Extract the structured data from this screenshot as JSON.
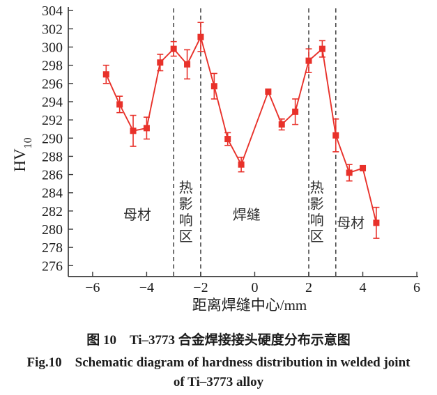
{
  "figure": {
    "captions": {
      "zh": "图 10　Ti–3773 合金焊接接头硬度分布示意图",
      "en_line1": "Fig.10　Schematic diagram of hardness distribution in welded joint",
      "en_line2": "of Ti–3773 alloy"
    }
  },
  "chart_data": {
    "type": "line",
    "title": "",
    "xlabel": "距离焊缝中心/mm",
    "ylabel_main": "HV",
    "ylabel_sub": "10",
    "xlim": [
      -6.9,
      6.05
    ],
    "ylim": [
      274.8,
      304.4
    ],
    "x_ticks": [
      -6,
      -4,
      -2,
      0,
      2,
      4,
      6
    ],
    "y_ticks": [
      276,
      278,
      280,
      282,
      284,
      286,
      288,
      290,
      292,
      294,
      296,
      298,
      300,
      302,
      304
    ],
    "grid": false,
    "legend": "none",
    "series": [
      {
        "name": "hardness",
        "marker": "square",
        "color": "#e8312a",
        "x": [
          -5.5,
          -5.0,
          -4.5,
          -4.0,
          -3.5,
          -3.0,
          -2.5,
          -2.0,
          -1.5,
          -1.0,
          -0.5,
          0.5,
          1.0,
          1.5,
          2.0,
          2.5,
          3.0,
          3.5,
          4.0,
          4.5
        ],
        "y": [
          297.0,
          293.7,
          290.8,
          291.1,
          298.3,
          299.8,
          298.1,
          301.1,
          295.7,
          289.9,
          287.1,
          295.1,
          291.5,
          292.9,
          298.5,
          299.8,
          290.3,
          286.2,
          286.7,
          280.7
        ],
        "y_err": [
          1.0,
          0.9,
          1.7,
          1.2,
          0.9,
          0.8,
          1.6,
          1.6,
          1.4,
          0.7,
          0.8,
          0,
          0.6,
          1.4,
          1.3,
          0.9,
          1.8,
          0.9,
          0,
          1.7
        ]
      }
    ],
    "boundary_lines": {
      "x_values": [
        -3,
        -2,
        2,
        3
      ],
      "style": "dashed",
      "color": "#4a4a4a"
    },
    "region_labels": [
      {
        "text": "母材",
        "x": -4.35,
        "y": 281.6,
        "vertical": false
      },
      {
        "text": "热影响区",
        "x": -2.55,
        "y": 281.9,
        "vertical": true
      },
      {
        "text": "焊缝",
        "x": -0.3,
        "y": 281.6,
        "vertical": false
      },
      {
        "text": "热影响区",
        "x": 2.3,
        "y": 281.9,
        "vertical": true
      },
      {
        "text": "母材",
        "x": 3.55,
        "y": 280.7,
        "vertical": false
      }
    ],
    "colors": {
      "series": "#e8312a",
      "axis": "#3a3a3a",
      "text": "#1c1c1c",
      "boundary": "#4a4a4a"
    }
  }
}
